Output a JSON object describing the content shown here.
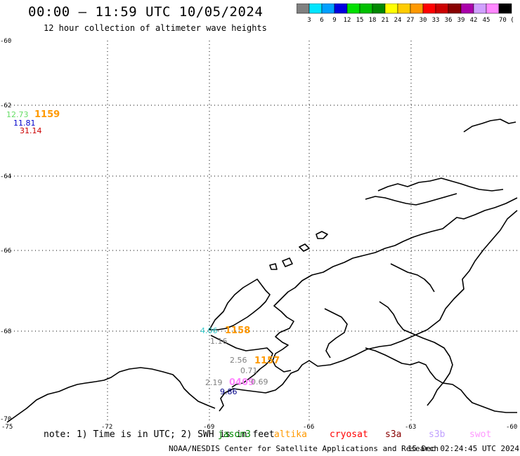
{
  "header": {
    "title": "00:00 – 11:59 UTC 10/05/2024",
    "subtitle": "12 hour collection of altimeter wave heights"
  },
  "colorbar": {
    "labels": [
      "3",
      "6",
      "9",
      "12",
      "15",
      "18",
      "21",
      "24",
      "27",
      "30",
      "33",
      "36",
      "39",
      "42",
      "45",
      "70 (ft)"
    ],
    "colors": [
      "#808080",
      "#00e5ff",
      "#00a0ff",
      "#0000e0",
      "#00e000",
      "#00c000",
      "#008800",
      "#ffff00",
      "#ffcc00",
      "#ff9900",
      "#ff0000",
      "#cc0000",
      "#880000",
      "#aa00aa",
      "#d0a0ff",
      "#ff88ff",
      "#000000"
    ]
  },
  "axes": {
    "lat_labels": [
      "-60",
      "-62",
      "-64",
      "-66",
      "-68",
      "-70"
    ],
    "lon_labels": [
      "-75",
      "-72",
      "-69",
      "-66",
      "-63",
      "-60"
    ]
  },
  "observations": [
    {
      "text": "12.73",
      "color": "#66dd66"
    },
    {
      "text": "1159",
      "color": "#ff9900",
      "pass": true
    },
    {
      "text": "11.81",
      "color": "#0000cc"
    },
    {
      "text": "31.14",
      "color": "#cc0000"
    },
    {
      "text": "4.06",
      "color": "#33cccc"
    },
    {
      "text": "1158",
      "color": "#ff9900",
      "pass": true
    },
    {
      "text": "1.16",
      "color": "#808080"
    },
    {
      "text": "2.56",
      "color": "#808080"
    },
    {
      "text": "1157",
      "color": "#ff9900",
      "pass": true
    },
    {
      "text": "0.71",
      "color": "#808080"
    },
    {
      "text": "2.19",
      "color": "#808080"
    },
    {
      "text": "0409",
      "color": "#ff88ff",
      "pass": true
    },
    {
      "text": "0.69",
      "color": "#808080"
    },
    {
      "text": "9.86",
      "color": "#000088"
    }
  ],
  "footer": {
    "note": "note: 1) Time is in UTC; 2) SWH is in feet",
    "satellites": [
      {
        "name": "jason3",
        "color": "#008800"
      },
      {
        "name": "altika",
        "color": "#ff9900"
      },
      {
        "name": "cryosat",
        "color": "#ff0000"
      },
      {
        "name": "s3a",
        "color": "#880000"
      },
      {
        "name": "s3b",
        "color": "#c0a0ff"
      },
      {
        "name": "swot",
        "color": "#ff99ff"
      }
    ],
    "credit": "NOAA/NESDIS Center for Satellite Applications and Research",
    "timestamp": "15 Dec 02:24:45 UTC 2024"
  }
}
